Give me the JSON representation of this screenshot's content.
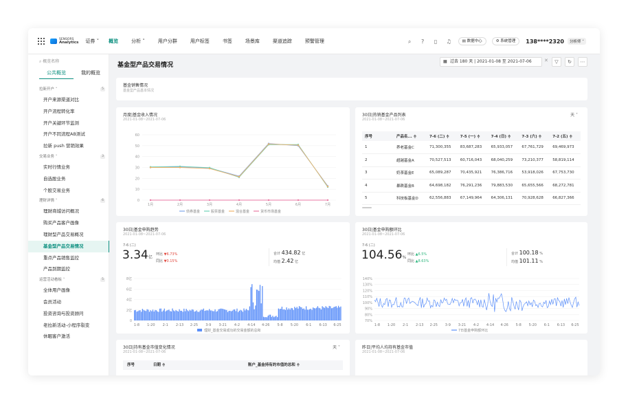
{
  "nav": {
    "brand_line1": "SENSORS",
    "brand_line2": "Analytics",
    "selector": "证券 ˅",
    "items": [
      "概览",
      "分析 ˅",
      "用户分群",
      "用户标签",
      "书签",
      "场景库",
      "渠道追踪",
      "预警管理"
    ],
    "data_center": "数据中心",
    "system": "系统管理",
    "phone": "138****2320",
    "phone_sub": "分析师 ˅"
  },
  "sidebar": {
    "search_placeholder": "概览名称",
    "tabs": [
      "公共概览",
      "我的概览"
    ],
    "groups": [
      {
        "label": "拉新开户 ˅",
        "count": "5",
        "items": [
          "开户来源渠道对比",
          "开户流程转化率",
          "开户关键环节监测",
          "开户不同流程AB测试",
          "拉新 push 营销效果"
        ]
      },
      {
        "label": "交易业务 ˅",
        "count": "3",
        "items": [
          "实时行情业务",
          "自选股业务",
          "个股交易业务"
        ]
      },
      {
        "label": "理财详情 ˅",
        "count": "6",
        "items": [
          "理财商城访问概况",
          "购买产品客户画像",
          "理财型产品交易概况",
          "基金型产品交易情况",
          "重点产品销售监控",
          "产品到期监控"
        ]
      },
      {
        "label": "运营活动看板 ˅",
        "count": "5",
        "items": [
          "全体用户画像",
          "会员活动",
          "投资咨询与投资顾问",
          "老拉新活动-小程序裂变",
          "休眠客户激活"
        ]
      }
    ],
    "active_item": "基金型产品交易情况"
  },
  "page": {
    "title": "基金型产品交易情况",
    "date_range": "过去 180 天 | 2021-01-08 至 2021-07-06"
  },
  "summary_card": {
    "title": "基金销售情况",
    "subtitle": "基金型产品基本情况"
  },
  "monthly_card": {
    "title": "月度|基金收入情况",
    "subtitle": "2021-01-08~2021-07-06"
  },
  "hot_card": {
    "title": "30日|热销基金产品列表",
    "subtitle": "2021-01-08~2021-07-06",
    "dropdown": "天 ˅",
    "columns": [
      "序号",
      "产品名... ≑",
      "7-6 (二) ≑",
      "7-5 (一) ≑",
      "7-4 (日) ≑",
      "7-3 (六) ≑",
      "7-2 (五) ≑"
    ],
    "rows": [
      [
        "1",
        "养老基金C",
        "71,300,355",
        "83,687,283",
        "65,933,057",
        "67,761,729",
        "69,469,973"
      ],
      [
        "2",
        "超越基金A",
        "70,527,513",
        "60,716,043",
        "68,040,259",
        "73,210,377",
        "58,819,114"
      ],
      [
        "3",
        "奶茶基金E",
        "65,089,287",
        "70,435,921",
        "76,386,716",
        "53,918,026",
        "67,753,730"
      ],
      [
        "4",
        "暴跌基金B",
        "64,698,182",
        "76,291,236",
        "79,883,530",
        "65,655,566",
        "68,272,781"
      ],
      [
        "5",
        "科技板基金D",
        "62,556,883",
        "67,149,964",
        "64,306,131",
        "70,928,628",
        "66,827,366"
      ]
    ]
  },
  "buy_card": {
    "title": "30日|基金申购趋势",
    "subtitle": "2021-01-08~2021-07-06",
    "day_label": "7-6 (二)",
    "big_value": "3.34",
    "big_unit": "亿",
    "ring_label": "环比",
    "ring_value": "▼6.73%",
    "yoy_label": "同比",
    "yoy_value": "▼0.15%",
    "total_label": "合计",
    "total_value": "434.82",
    "total_unit": "亿",
    "avg_label": "均值",
    "avg_value": "2.42",
    "avg_unit": "亿"
  },
  "ratio_card": {
    "title": "30日|基金申购额环比",
    "subtitle": "2021-01-08~2021-07-06",
    "day_label": "7-6 (二)",
    "big_value": "104.56",
    "big_unit": "%",
    "ring_label": "环比",
    "ring_value": "▲6.5%",
    "yoy_label": "同比",
    "yoy_value": "▲8.63%",
    "total_label": "合计",
    "total_value": "100.18",
    "total_unit": "%",
    "avg_label": "均值",
    "avg_value": "101.11",
    "avg_unit": "%"
  },
  "holding_card": {
    "title": "30日|持有基金市值变化情况",
    "subtitle": "2021-01-08~2021-07-06",
    "dropdown": "天 ˅",
    "col1": "序号",
    "col2": "日期 ≑",
    "col3": "账户_基金持有的市值的总和 ≑"
  },
  "avg_card": {
    "title": "昨日|平均人均持有基金市值",
    "subtitle": "2021-01-08~2021-07-06"
  },
  "chart_data": [
    {
      "type": "line",
      "title": "月度|基金收入情况",
      "categories": [
        "1月",
        "2月",
        "3月",
        "4月",
        "5月",
        "6月",
        "7月"
      ],
      "ylim": [
        0,
        60
      ],
      "yticks": [
        "0",
        "10",
        "20",
        "30",
        "40",
        "50",
        "60"
      ],
      "series": [
        {
          "name": "债券基金",
          "color": "#7fa7e8",
          "values": [
            30,
            30.5,
            29.5,
            22,
            52,
            50,
            13
          ]
        },
        {
          "name": "股票基金",
          "color": "#6fd1b8",
          "values": [
            30.5,
            31,
            29.8,
            21,
            51,
            51,
            12
          ]
        },
        {
          "name": "混合基金",
          "color": "#f0b36a",
          "values": [
            30,
            30,
            29,
            21.5,
            51.5,
            50.5,
            12.5
          ]
        },
        {
          "name": "货币市场基金",
          "color": "#e97aa4",
          "values": [
            0,
            0,
            0,
            0,
            0,
            0,
            0
          ]
        }
      ]
    },
    {
      "type": "bar",
      "title": "30日|基金申购趋势",
      "xticks": [
        "1-8",
        "1-20",
        "2-1",
        "2-13",
        "2-25",
        "3-9",
        "3-21",
        "4-2",
        "4-14",
        "4-26",
        "5-8",
        "5-20",
        "6-1",
        "6-13",
        "6-25"
      ],
      "ylim": [
        0,
        8
      ],
      "yticks": [
        "0",
        "2亿",
        "4亿",
        "6亿",
        "8亿"
      ],
      "legend": "理财_基金交易成功的交易金额的总和",
      "color": "#5b8ff9"
    },
    {
      "type": "line",
      "title": "30日|基金申购额环比",
      "xticks": [
        "1-8",
        "1-20",
        "2-1",
        "2-13",
        "2-25",
        "3-9",
        "3-21",
        "4-2",
        "4-14",
        "4-26",
        "5-8",
        "5-20",
        "6-1",
        "6-13",
        "6-25"
      ],
      "ylim": [
        70,
        140
      ],
      "yticks": [
        "70%",
        "80%",
        "90%",
        "100%",
        "110%",
        "120%",
        "130%",
        "140%"
      ],
      "legend": "7日基金申购额环比",
      "color": "#5b8ff9"
    }
  ]
}
